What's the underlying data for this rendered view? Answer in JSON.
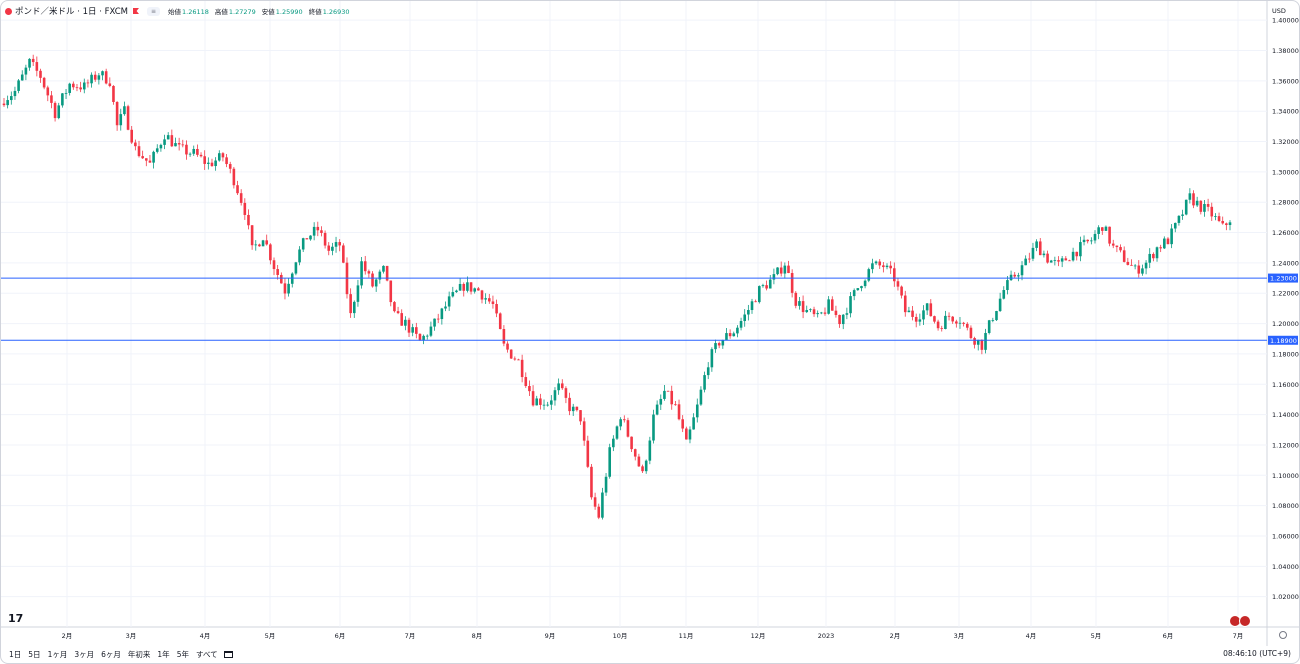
{
  "header": {
    "symbol": "ポンド／米ドル · 1日 · FXCM",
    "pill": "≡",
    "ohlc": [
      {
        "label": "始値",
        "value": "1.26118"
      },
      {
        "label": "高値",
        "value": "1.27279"
      },
      {
        "label": "安値",
        "value": "1.25990"
      },
      {
        "label": "終値",
        "value": "1.26930"
      }
    ]
  },
  "colors": {
    "up": "#089981",
    "down": "#f23645",
    "hline": "#2962ff",
    "grid": "#f0f3fa",
    "axis_text": "#131722"
  },
  "chart_data": {
    "type": "candlestick",
    "currency": "USD",
    "ylim": [
      1.0,
      1.41
    ],
    "y_ticks": [
      "1.40000",
      "1.38000",
      "1.36000",
      "1.34000",
      "1.32000",
      "1.30000",
      "1.28000",
      "1.26000",
      "1.24000",
      "1.22000",
      "1.20000",
      "1.18000",
      "1.16000",
      "1.14000",
      "1.12000",
      "1.10000",
      "1.08000",
      "1.06000",
      "1.04000",
      "1.02000"
    ],
    "x_ticks": [
      "2月",
      "3月",
      "4月",
      "5月",
      "6月",
      "7月",
      "8月",
      "9月",
      "10月",
      "11月",
      "12月",
      "2023",
      "2月",
      "3月",
      "4月",
      "5月",
      "6月",
      "7月"
    ],
    "horizontal_lines": [
      {
        "value": 1.23,
        "label": "1.23000"
      },
      {
        "value": 1.189,
        "label": "1.18900"
      }
    ],
    "path": [
      [
        0,
        1.348
      ],
      [
        3,
        1.353
      ],
      [
        7,
        1.372
      ],
      [
        10,
        1.363
      ],
      [
        14,
        1.339
      ],
      [
        18,
        1.358
      ],
      [
        22,
        1.356
      ],
      [
        26,
        1.365
      ],
      [
        29,
        1.36
      ],
      [
        31,
        1.33
      ],
      [
        33,
        1.34
      ],
      [
        36,
        1.315
      ],
      [
        40,
        1.305
      ],
      [
        44,
        1.325
      ],
      [
        48,
        1.315
      ],
      [
        52,
        1.312
      ],
      [
        56,
        1.305
      ],
      [
        60,
        1.31
      ],
      [
        63,
        1.295
      ],
      [
        66,
        1.275
      ],
      [
        68,
        1.248
      ],
      [
        71,
        1.258
      ],
      [
        74,
        1.238
      ],
      [
        77,
        1.222
      ],
      [
        80,
        1.243
      ],
      [
        83,
        1.257
      ],
      [
        86,
        1.262
      ],
      [
        89,
        1.248
      ],
      [
        92,
        1.252
      ],
      [
        95,
        1.205
      ],
      [
        98,
        1.24
      ],
      [
        101,
        1.225
      ],
      [
        104,
        1.235
      ],
      [
        107,
        1.205
      ],
      [
        110,
        1.2
      ],
      [
        114,
        1.188
      ],
      [
        118,
        1.2
      ],
      [
        122,
        1.215
      ],
      [
        126,
        1.225
      ],
      [
        130,
        1.222
      ],
      [
        134,
        1.212
      ],
      [
        137,
        1.185
      ],
      [
        141,
        1.175
      ],
      [
        145,
        1.15
      ],
      [
        149,
        1.148
      ],
      [
        152,
        1.158
      ],
      [
        155,
        1.145
      ],
      [
        158,
        1.138
      ],
      [
        161,
        1.085
      ],
      [
        163,
        1.073
      ],
      [
        166,
        1.115
      ],
      [
        169,
        1.14
      ],
      [
        172,
        1.12
      ],
      [
        175,
        1.1
      ],
      [
        178,
        1.138
      ],
      [
        181,
        1.155
      ],
      [
        184,
        1.145
      ],
      [
        187,
        1.12
      ],
      [
        190,
        1.145
      ],
      [
        193,
        1.175
      ],
      [
        196,
        1.188
      ],
      [
        200,
        1.195
      ],
      [
        203,
        1.205
      ],
      [
        207,
        1.222
      ],
      [
        211,
        1.23
      ],
      [
        214,
        1.24
      ],
      [
        217,
        1.215
      ],
      [
        220,
        1.208
      ],
      [
        223,
        1.203
      ],
      [
        226,
        1.212
      ],
      [
        229,
        1.202
      ],
      [
        232,
        1.215
      ],
      [
        235,
        1.228
      ],
      [
        238,
        1.238
      ],
      [
        241,
        1.238
      ],
      [
        244,
        1.23
      ],
      [
        247,
        1.208
      ],
      [
        250,
        1.205
      ],
      [
        253,
        1.21
      ],
      [
        256,
        1.198
      ],
      [
        259,
        1.205
      ],
      [
        262,
        1.203
      ],
      [
        265,
        1.192
      ],
      [
        268,
        1.186
      ],
      [
        271,
        1.205
      ],
      [
        274,
        1.222
      ],
      [
        277,
        1.232
      ],
      [
        280,
        1.24
      ],
      [
        283,
        1.252
      ],
      [
        286,
        1.243
      ],
      [
        289,
        1.238
      ],
      [
        292,
        1.245
      ],
      [
        295,
        1.25
      ],
      [
        298,
        1.255
      ],
      [
        301,
        1.265
      ],
      [
        304,
        1.25
      ],
      [
        307,
        1.243
      ],
      [
        310,
        1.235
      ],
      [
        313,
        1.24
      ],
      [
        316,
        1.25
      ],
      [
        319,
        1.255
      ],
      [
        322,
        1.268
      ],
      [
        325,
        1.283
      ],
      [
        328,
        1.277
      ],
      [
        331,
        1.272
      ],
      [
        334,
        1.263
      ],
      [
        336,
        1.269
      ]
    ]
  },
  "bottom_bar": {
    "ranges": [
      "1日",
      "5日",
      "1ヶ月",
      "3ヶ月",
      "6ヶ月",
      "年初来",
      "1年",
      "5年",
      "すべて"
    ],
    "clock": "08:46:10 (UTC+9)"
  },
  "logo": "17"
}
